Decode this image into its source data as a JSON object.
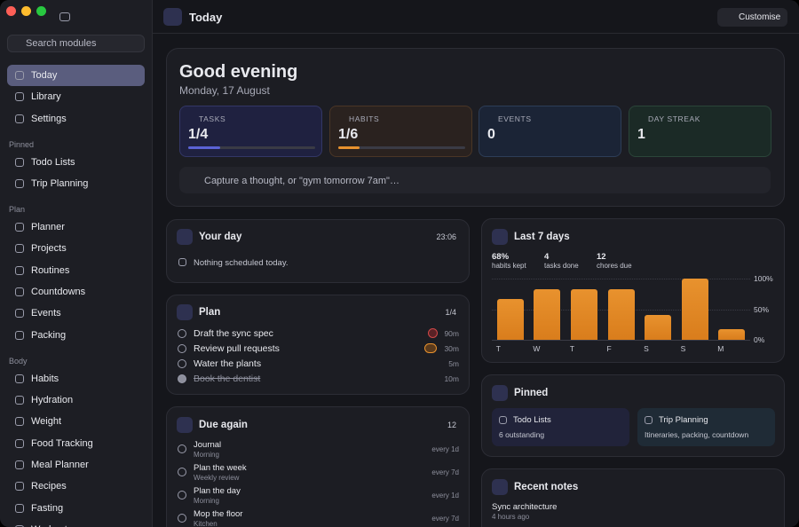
{
  "sidebar": {
    "search": "Search modules",
    "top": [
      "Today",
      "Library",
      "Settings"
    ],
    "groups": [
      {
        "title": "Pinned",
        "items": [
          "Todo Lists",
          "Trip Planning"
        ]
      },
      {
        "title": "Plan",
        "items": [
          "Planner",
          "Projects",
          "Routines",
          "Countdowns",
          "Events",
          "Packing"
        ]
      },
      {
        "title": "Body",
        "items": [
          "Habits",
          "Hydration",
          "Weight",
          "Food Tracking",
          "Meal Planner",
          "Recipes",
          "Fasting",
          "Workouts"
        ]
      }
    ]
  },
  "header": {
    "title": "Today",
    "button": "Customise"
  },
  "hero": {
    "greeting": "Good evening",
    "date": "Monday, 17 August",
    "stats": [
      {
        "label": "TASKS",
        "value": "1/4",
        "progress": 0.25,
        "color": "#5b63d6"
      },
      {
        "label": "HABITS",
        "value": "1/6",
        "progress": 0.17,
        "color": "#e8922e"
      },
      {
        "label": "EVENTS",
        "value": "0"
      },
      {
        "label": "DAY STREAK",
        "value": "1"
      }
    ],
    "capture": "Capture a thought, or \"gym tomorrow 7am\"…"
  },
  "your_day": {
    "title": "Your day",
    "time": "23:06",
    "empty": "Nothing scheduled today."
  },
  "plan": {
    "title": "Plan",
    "count": "1/4",
    "items": [
      {
        "text": "Draft the sync spec",
        "meta": "90m",
        "done": false,
        "priority": "high"
      },
      {
        "text": "Review pull requests",
        "meta": "30m",
        "done": false,
        "priority": "medium"
      },
      {
        "text": "Water the plants",
        "meta": "5m",
        "done": false
      },
      {
        "text": "Book the dentist",
        "meta": "10m",
        "done": true
      }
    ]
  },
  "due_again": {
    "title": "Due again",
    "count": "12",
    "items": [
      {
        "title": "Journal",
        "subtitle": "Morning",
        "freq": "every 1d"
      },
      {
        "title": "Plan the week",
        "subtitle": "Weekly review",
        "freq": "every 7d"
      },
      {
        "title": "Plan the day",
        "subtitle": "Morning",
        "freq": "every 1d"
      },
      {
        "title": "Mop the floor",
        "subtitle": "Kitchen",
        "freq": "every 7d"
      }
    ]
  },
  "last7": {
    "title": "Last 7 days",
    "stats": [
      {
        "value": "68%",
        "label": "habits kept"
      },
      {
        "value": "4",
        "label": "tasks done"
      },
      {
        "value": "12",
        "label": "chores due"
      }
    ],
    "chart": {
      "type": "bar",
      "categories": [
        "T",
        "W",
        "T",
        "F",
        "S",
        "S",
        "M"
      ],
      "values": [
        67,
        83,
        83,
        83,
        40,
        100,
        17
      ],
      "color": "#e8922e",
      "ylim": [
        0,
        100
      ],
      "yticks": [
        {
          "value": 0,
          "label": "0%"
        },
        {
          "value": 50,
          "label": "50%"
        },
        {
          "value": 100,
          "label": "100%"
        }
      ],
      "grid": true
    }
  },
  "pinned": {
    "title": "Pinned",
    "cards": [
      {
        "title": "Todo Lists",
        "sub": "6 outstanding"
      },
      {
        "title": "Trip Planning",
        "sub": "Itineraries, packing, countdown"
      }
    ]
  },
  "recent_notes": {
    "title": "Recent notes",
    "notes": [
      {
        "title": "Sync architecture",
        "time": "4 hours ago"
      }
    ]
  }
}
